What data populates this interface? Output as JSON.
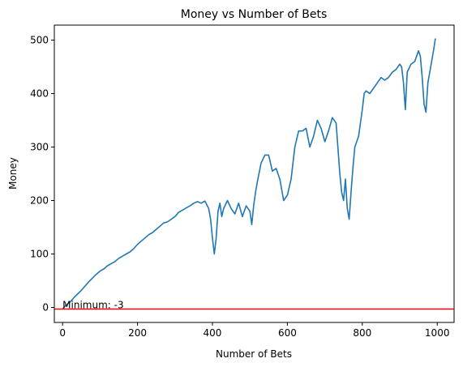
{
  "chart_data": {
    "type": "line",
    "title": "Money vs Number of Bets",
    "xlabel": "Number of Bets",
    "ylabel": "Money",
    "xlim": [
      -22,
      1045
    ],
    "ylim": [
      -28,
      528
    ],
    "xticks": [
      0,
      200,
      400,
      600,
      800,
      1000
    ],
    "yticks": [
      0,
      100,
      200,
      300,
      400,
      500
    ],
    "grid": false,
    "series": [
      {
        "color": "#1f77b4",
        "x": [
          0,
          10,
          20,
          30,
          40,
          50,
          60,
          70,
          80,
          90,
          100,
          110,
          120,
          130,
          140,
          150,
          160,
          170,
          180,
          190,
          200,
          210,
          220,
          230,
          240,
          250,
          260,
          270,
          280,
          290,
          300,
          310,
          320,
          330,
          340,
          350,
          360,
          370,
          380,
          390,
          395,
          400,
          405,
          410,
          415,
          420,
          425,
          430,
          440,
          450,
          460,
          470,
          480,
          490,
          500,
          505,
          510,
          515,
          520,
          530,
          540,
          550,
          560,
          570,
          580,
          590,
          600,
          610,
          620,
          630,
          640,
          650,
          660,
          670,
          680,
          690,
          700,
          710,
          720,
          730,
          740,
          745,
          750,
          755,
          760,
          765,
          770,
          775,
          780,
          790,
          800,
          805,
          810,
          820,
          830,
          840,
          850,
          860,
          870,
          880,
          890,
          900,
          905,
          910,
          915,
          920,
          930,
          940,
          950,
          955,
          960,
          965,
          970,
          975,
          980,
          990,
          995
        ],
        "values": [
          -3,
          5,
          10,
          18,
          25,
          32,
          40,
          48,
          55,
          62,
          68,
          72,
          78,
          82,
          86,
          92,
          96,
          100,
          104,
          110,
          118,
          124,
          130,
          136,
          140,
          146,
          152,
          158,
          160,
          165,
          170,
          178,
          182,
          186,
          190,
          195,
          198,
          195,
          199,
          185,
          165,
          130,
          100,
          130,
          180,
          195,
          170,
          185,
          200,
          185,
          175,
          195,
          170,
          190,
          180,
          155,
          190,
          215,
          235,
          270,
          285,
          285,
          255,
          260,
          240,
          200,
          210,
          240,
          300,
          330,
          330,
          335,
          300,
          320,
          350,
          335,
          310,
          330,
          355,
          345,
          250,
          215,
          200,
          240,
          185,
          165,
          215,
          260,
          300,
          320,
          370,
          400,
          405,
          400,
          410,
          420,
          430,
          425,
          430,
          440,
          445,
          455,
          450,
          420,
          370,
          440,
          455,
          460,
          480,
          470,
          430,
          380,
          365,
          420,
          440,
          480,
          503
        ]
      }
    ],
    "hline": {
      "y": -3,
      "color": "#ff0000"
    },
    "annotation": {
      "text": "Minimum: -3",
      "x": 0,
      "y": -3
    }
  }
}
